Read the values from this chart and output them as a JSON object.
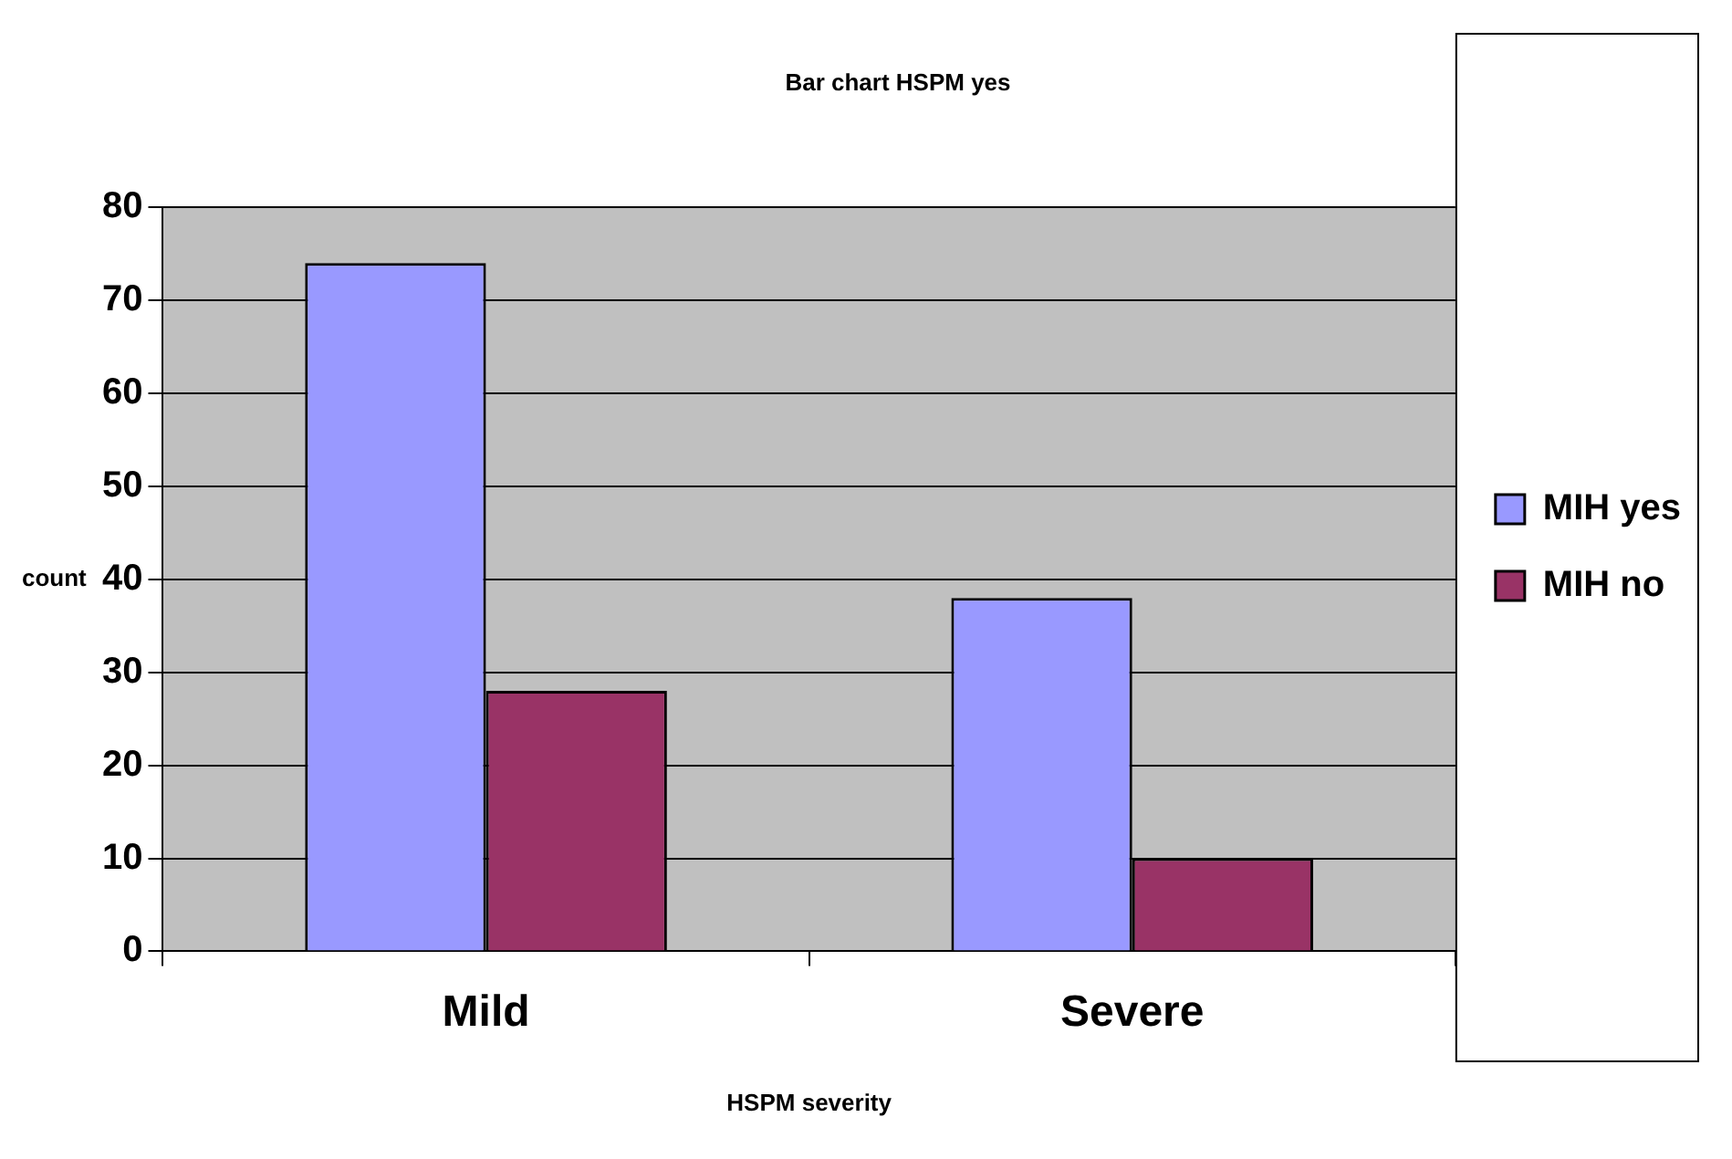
{
  "chart_data": {
    "type": "bar",
    "title": "Bar chart HSPM yes",
    "xlabel": "HSPM severity",
    "ylabel": "count",
    "categories": [
      "Mild",
      "Severe"
    ],
    "series": [
      {
        "name": "MIH yes",
        "color": "#9999ff",
        "values": [
          74,
          38
        ]
      },
      {
        "name": "MIH no",
        "color": "#993366",
        "values": [
          28,
          10
        ]
      }
    ],
    "ylim": [
      0,
      80
    ],
    "yticks": [
      0,
      10,
      20,
      30,
      40,
      50,
      60,
      70,
      80
    ],
    "grid": "y",
    "legend": "right"
  }
}
